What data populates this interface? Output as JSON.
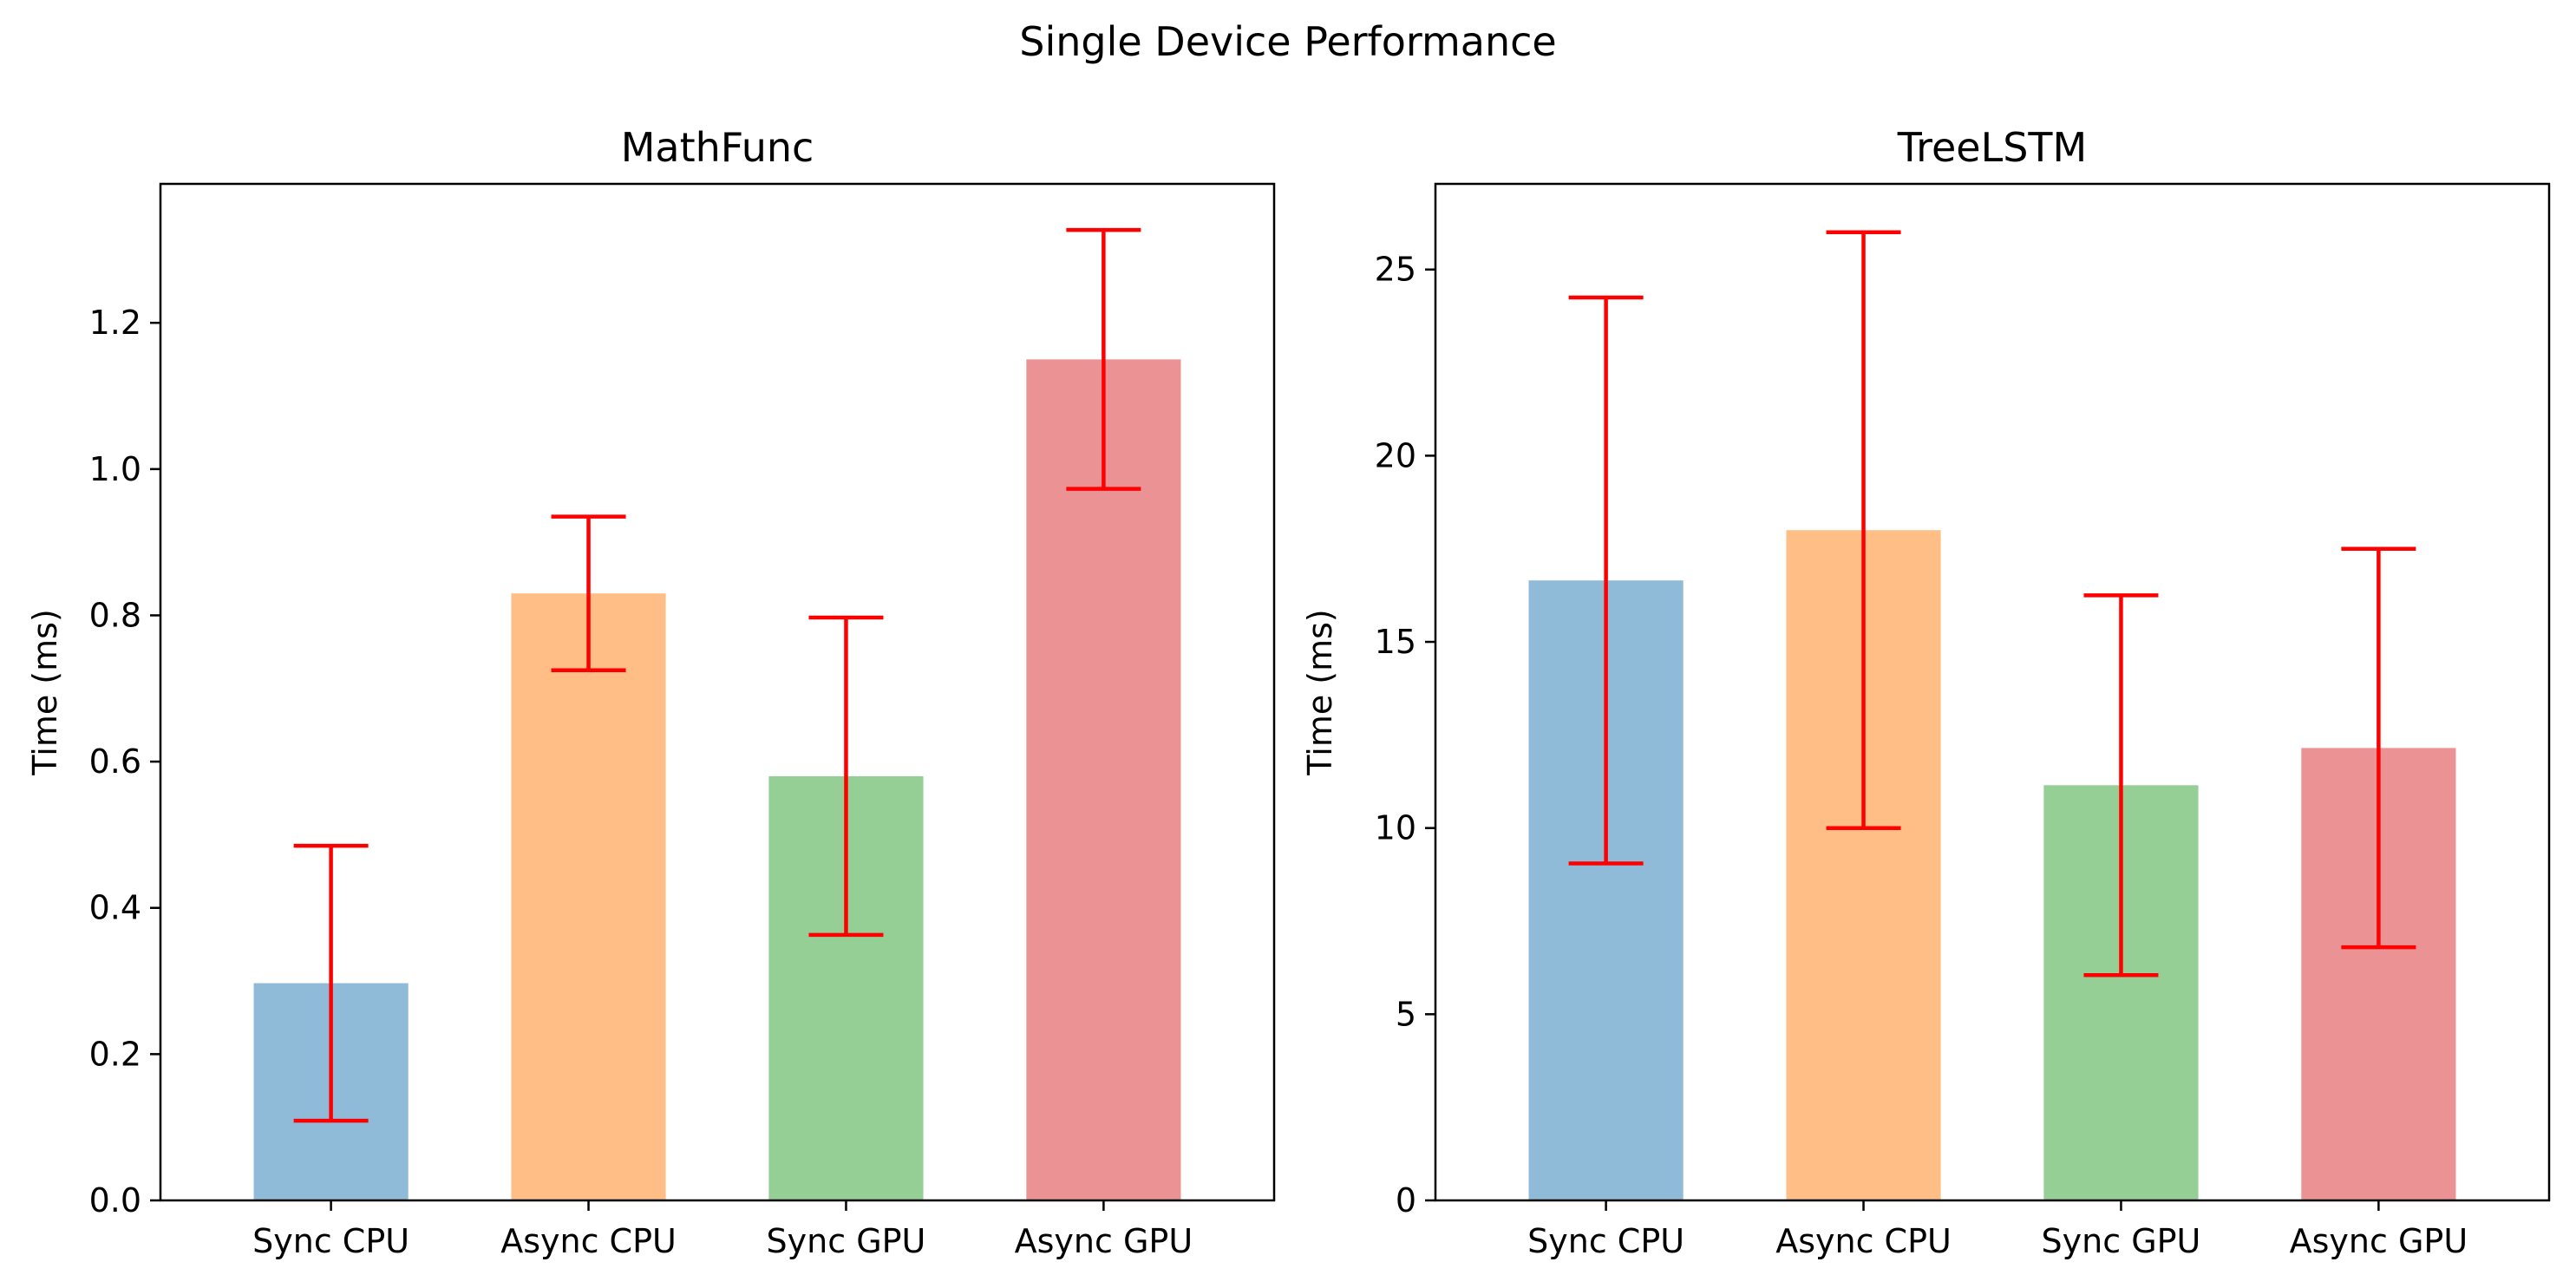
{
  "figure": {
    "title": "Single Device Performance"
  },
  "chart_data": [
    {
      "type": "bar",
      "title": "MathFunc",
      "xlabel": "",
      "ylabel": "Time (ms)",
      "categories": [
        "Sync CPU",
        "Async CPU",
        "Sync GPU",
        "Async GPU"
      ],
      "values": [
        0.297,
        0.83,
        0.58,
        1.15
      ],
      "errors": [
        0.188,
        0.105,
        0.217,
        0.177
      ],
      "ylim": [
        0,
        1.39
      ],
      "yticks": [
        0.0,
        0.2,
        0.4,
        0.6,
        0.8,
        1.0,
        1.2
      ],
      "ytick_labels": [
        "0.0",
        "0.2",
        "0.4",
        "0.6",
        "0.8",
        "1.0",
        "1.2"
      ],
      "colors": [
        "#8fbad8",
        "#ffbe86",
        "#96cf95",
        "#eb9294"
      ],
      "error_color": "#ff0000",
      "grid": false
    },
    {
      "type": "bar",
      "title": "TreeLSTM",
      "xlabel": "",
      "ylabel": "Time (ms)",
      "categories": [
        "Sync CPU",
        "Async CPU",
        "Sync GPU",
        "Async GPU"
      ],
      "values": [
        16.65,
        18.0,
        11.15,
        12.15
      ],
      "errors": [
        7.6,
        8.0,
        5.1,
        5.35
      ],
      "ylim": [
        0,
        27.3
      ],
      "yticks": [
        0,
        5,
        10,
        15,
        20,
        25
      ],
      "ytick_labels": [
        "0",
        "5",
        "10",
        "15",
        "20",
        "25"
      ],
      "colors": [
        "#8fbad8",
        "#ffbe86",
        "#96cf95",
        "#eb9294"
      ],
      "error_color": "#ff0000",
      "grid": false
    }
  ]
}
